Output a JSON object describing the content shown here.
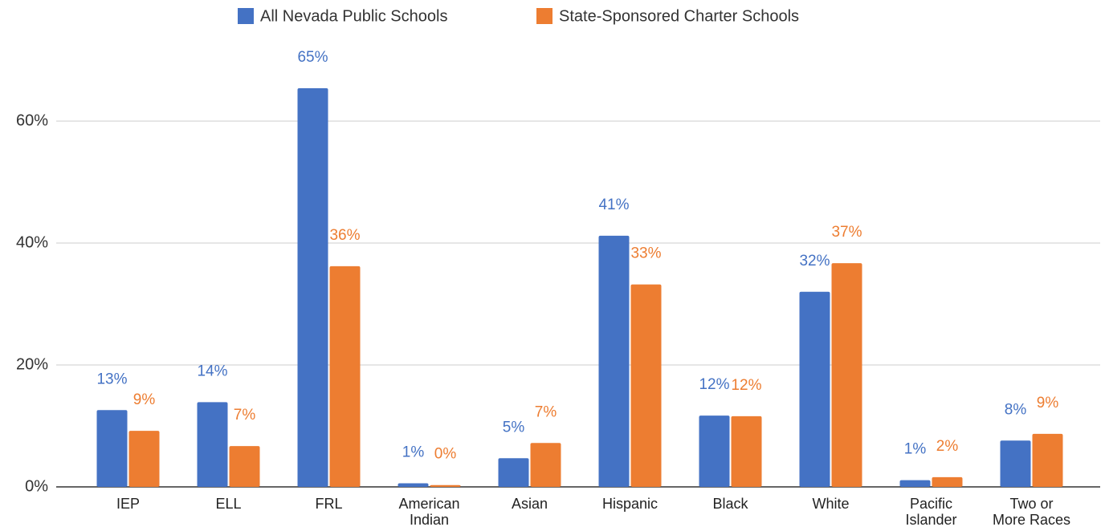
{
  "chart_data": {
    "type": "bar",
    "categories": [
      "IEP",
      "ELL",
      "FRL",
      "American Indian",
      "Asian",
      "Hispanic",
      "Black",
      "White",
      "Pacific Islander",
      "Two or More Races"
    ],
    "series": [
      {
        "name": "All Nevada Public Schools",
        "color": "#4472c4",
        "values": [
          12.6,
          13.9,
          65.4,
          0.6,
          4.7,
          41.2,
          11.7,
          32.0,
          1.1,
          7.6
        ],
        "value_labels": [
          "13%",
          "14%",
          "65%",
          "1%",
          "5%",
          "41%",
          "12%",
          "32%",
          "1%",
          "8%"
        ]
      },
      {
        "name": "State-Sponsored Charter Schools",
        "color": "#ed7d31",
        "values": [
          9.2,
          6.7,
          36.2,
          0.3,
          7.2,
          33.2,
          11.6,
          36.7,
          1.6,
          8.7
        ],
        "value_labels": [
          "9%",
          "7%",
          "36%",
          "0%",
          "7%",
          "33%",
          "12%",
          "37%",
          "2%",
          "9%"
        ]
      }
    ],
    "ylim": [
      0,
      70
    ],
    "yticks": [
      {
        "value": 0,
        "label": "0%"
      },
      {
        "value": 20,
        "label": "20%"
      },
      {
        "value": 40,
        "label": "40%"
      },
      {
        "value": 60,
        "label": "60%"
      }
    ],
    "grid": true,
    "legend": "top"
  }
}
